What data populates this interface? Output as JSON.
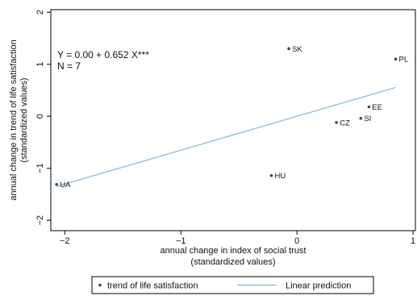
{
  "chart_data": {
    "type": "scatter",
    "xlabel": [
      "annual change in index of social trust",
      "(standardized values)"
    ],
    "ylabel": [
      "annual change in trend of life satisfaction",
      "(standardized values)"
    ],
    "xlim": [
      -2.12,
      1.02
    ],
    "ylim": [
      -2.2,
      2.05
    ],
    "xticks": [
      -2,
      -1,
      0,
      1
    ],
    "yticks": [
      -2,
      -1,
      0,
      1,
      2
    ],
    "xtick_labels": [
      "−2",
      "−1",
      "0",
      "1"
    ],
    "ytick_labels": [
      "−2",
      "−1",
      "0",
      "1",
      "2"
    ],
    "grid": false,
    "points": [
      {
        "label": "SK",
        "x": -0.07,
        "y": 1.3
      },
      {
        "label": "PL",
        "x": 0.85,
        "y": 1.1
      },
      {
        "label": "EE",
        "x": 0.62,
        "y": 0.18
      },
      {
        "label": "SI",
        "x": 0.55,
        "y": -0.04
      },
      {
        "label": "CZ",
        "x": 0.34,
        "y": -0.12
      },
      {
        "label": "HU",
        "x": -0.22,
        "y": -1.14
      },
      {
        "label": "UA",
        "x": -2.07,
        "y": -1.31
      }
    ],
    "fit_line": {
      "intercept": 0.0,
      "slope": 0.652,
      "x_range": [
        -2.07,
        0.85
      ]
    },
    "annotations": [
      "Y = 0.00 + 0.652 X***",
      "N = 7"
    ],
    "legend": {
      "position": "bottom",
      "items": [
        {
          "label": "trend of life satisfaction",
          "kind": "marker"
        },
        {
          "label": "Linear prediction",
          "kind": "line"
        }
      ]
    },
    "colors": {
      "point": "#1f4e79",
      "line": "#7fb7e0",
      "axis": "#000000",
      "label": "#111111"
    }
  }
}
